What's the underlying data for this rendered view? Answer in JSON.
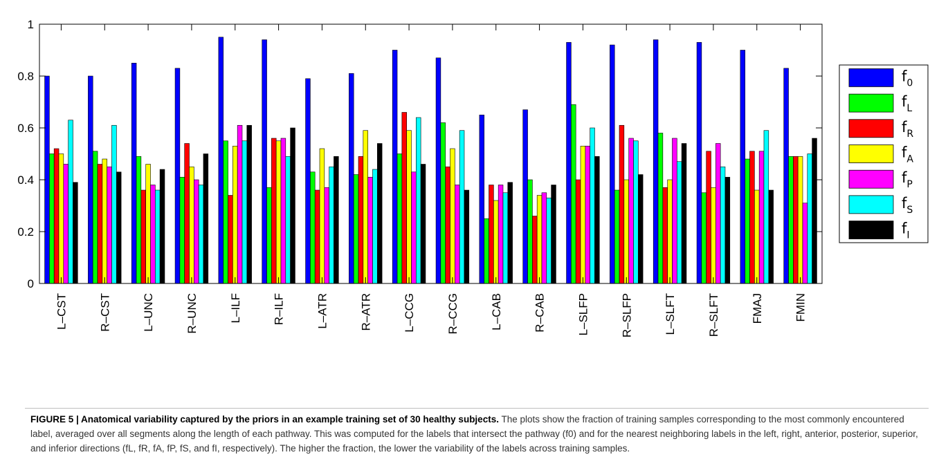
{
  "chart_data": {
    "type": "bar",
    "categories": [
      "L–CST",
      "R–CST",
      "L–UNC",
      "R–UNC",
      "L–ILF",
      "R–ILF",
      "L–ATR",
      "R–ATR",
      "L–CCG",
      "R–CCG",
      "L–CAB",
      "R–CAB",
      "L–SLFP",
      "R–SLFP",
      "L–SLFT",
      "R–SLFT",
      "FMAJ",
      "FMIN"
    ],
    "ylim": [
      0,
      1
    ],
    "yticks": [
      "0",
      "0.2",
      "0.4",
      "0.6",
      "0.8",
      "1"
    ],
    "legend_position": "right",
    "grid": false,
    "series": [
      {
        "name": "f",
        "sub": "0",
        "color": "#0000ff",
        "values": [
          0.8,
          0.8,
          0.85,
          0.83,
          0.95,
          0.94,
          0.79,
          0.81,
          0.9,
          0.87,
          0.65,
          0.67,
          0.93,
          0.92,
          0.94,
          0.93,
          0.9,
          0.83
        ]
      },
      {
        "name": "f",
        "sub": "L",
        "color": "#00ff00",
        "values": [
          0.5,
          0.51,
          0.49,
          0.41,
          0.55,
          0.37,
          0.43,
          0.42,
          0.5,
          0.62,
          0.25,
          0.4,
          0.69,
          0.36,
          0.58,
          0.35,
          0.48,
          0.49
        ]
      },
      {
        "name": "f",
        "sub": "R",
        "color": "#ff0000",
        "values": [
          0.52,
          0.46,
          0.36,
          0.54,
          0.34,
          0.56,
          0.36,
          0.49,
          0.66,
          0.45,
          0.38,
          0.26,
          0.4,
          0.61,
          0.37,
          0.51,
          0.51,
          0.49
        ]
      },
      {
        "name": "f",
        "sub": "A",
        "color": "#ffff00",
        "values": [
          0.5,
          0.48,
          0.46,
          0.45,
          0.53,
          0.55,
          0.52,
          0.59,
          0.59,
          0.52,
          0.32,
          0.34,
          0.53,
          0.4,
          0.4,
          0.37,
          0.36,
          0.49
        ]
      },
      {
        "name": "f",
        "sub": "P",
        "color": "#ff00ff",
        "values": [
          0.46,
          0.45,
          0.38,
          0.4,
          0.61,
          0.56,
          0.37,
          0.41,
          0.43,
          0.38,
          0.38,
          0.35,
          0.53,
          0.56,
          0.56,
          0.54,
          0.51,
          0.31
        ]
      },
      {
        "name": "f",
        "sub": "S",
        "color": "#00ffff",
        "values": [
          0.63,
          0.61,
          0.36,
          0.38,
          0.55,
          0.49,
          0.45,
          0.44,
          0.64,
          0.59,
          0.35,
          0.33,
          0.6,
          0.55,
          0.47,
          0.45,
          0.59,
          0.5
        ]
      },
      {
        "name": "f",
        "sub": "I",
        "color": "#000000",
        "values": [
          0.39,
          0.43,
          0.44,
          0.5,
          0.61,
          0.6,
          0.49,
          0.54,
          0.46,
          0.36,
          0.39,
          0.38,
          0.49,
          0.42,
          0.54,
          0.41,
          0.36,
          0.56
        ]
      }
    ]
  },
  "caption": {
    "label": "FIGURE 5 | Anatomical variability captured by the priors in an example training set of 30 healthy subjects.",
    "text": " The plots show the fraction of training samples corresponding to the most commonly encountered label, averaged over all segments along the length of each pathway. This was computed for the labels that intersect the pathway (f0) and for the nearest neighboring labels in the left, right, anterior, posterior, superior, and inferior directions (fL, fR, fA, fP, fS, and fI, respectively). The higher the fraction, the lower the variability of the labels across training samples."
  }
}
